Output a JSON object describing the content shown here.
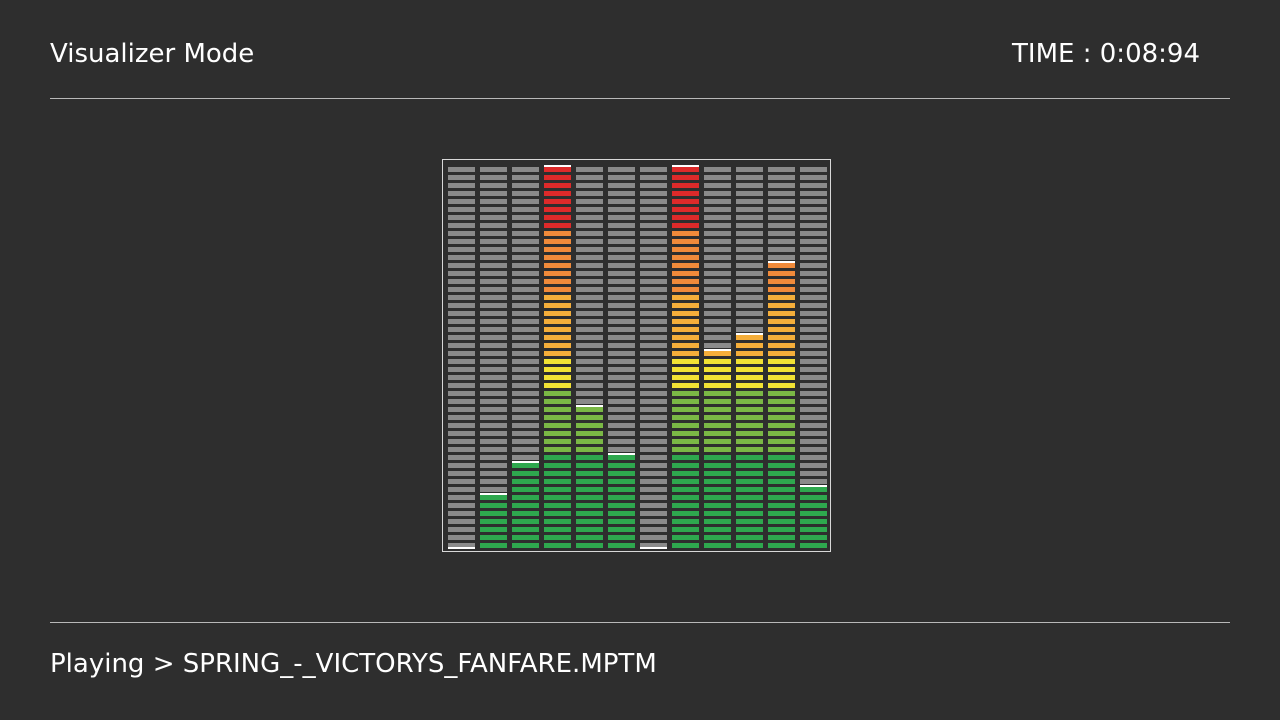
{
  "header": {
    "title": "Visualizer Mode",
    "time_label": "TIME",
    "time_separator": " : ",
    "time_value": "0:08:94"
  },
  "footer": {
    "status_label": "Playing",
    "status_separator": " > ",
    "track_name": "SPRING_-_VICTORYS_FANFARE.MPTM"
  },
  "visualizer": {
    "segments_per_bar": 48,
    "bar_levels": [
      0.0,
      0.15,
      0.23,
      1.0,
      0.38,
      0.25,
      0.0,
      1.0,
      0.53,
      0.57,
      0.75,
      0.16
    ],
    "colors": {
      "inactive": "#8a8a8a",
      "green": "#2ea84e",
      "lime": "#7ab845",
      "yellow": "#f2e234",
      "amber": "#f5ae3a",
      "orange": "#f08a3a",
      "red": "#dd2a2a",
      "peak": "#ffffff"
    }
  }
}
